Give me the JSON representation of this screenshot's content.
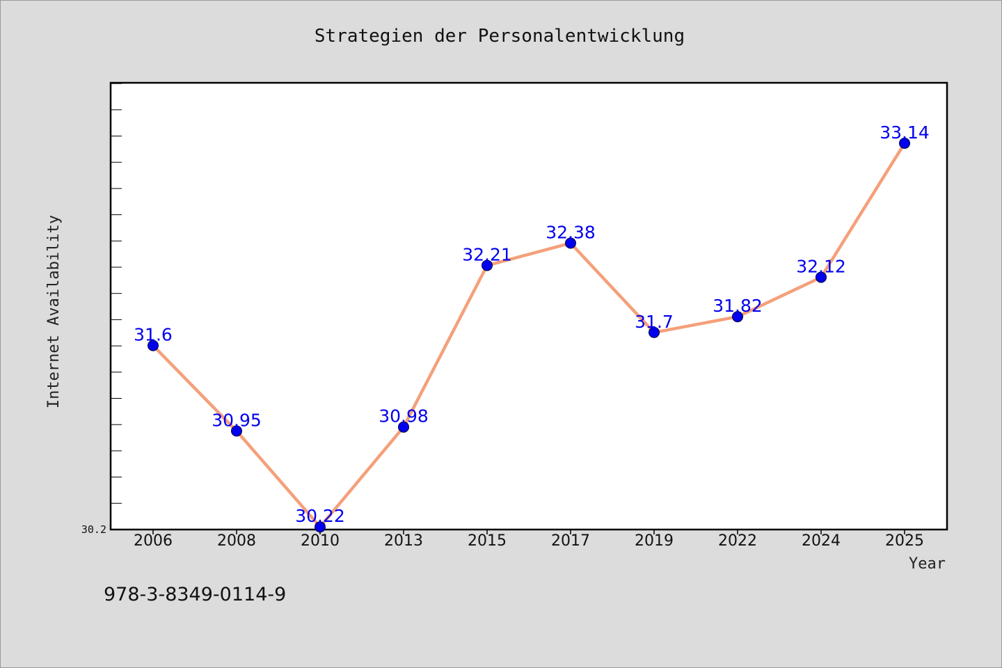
{
  "chart_data": {
    "type": "line",
    "title": "Strategien der Personalentwicklung",
    "xlabel": "Year",
    "ylabel": "Internet Availability",
    "categories": [
      "2006",
      "2008",
      "2010",
      "2013",
      "2015",
      "2017",
      "2019",
      "2022",
      "2024",
      "2025"
    ],
    "series": [
      {
        "values": [
          31.6,
          30.95,
          30.22,
          30.98,
          32.21,
          32.38,
          31.7,
          31.82,
          32.12,
          33.14
        ],
        "data_labels": [
          "31.6",
          "30.95",
          "30.22",
          "30.98",
          "32.21",
          "32.38",
          "31.7",
          "31.82",
          "32.12",
          "33.14"
        ]
      }
    ],
    "ylim": [
      30.2,
      33.6
    ],
    "ytick_labels": [
      "30.2"
    ],
    "grid": false,
    "colors": {
      "line": "#f4a07a",
      "marker": "#0000ee",
      "data_label": "#0000ee",
      "plot_background": "#ffffff",
      "page_background": "#dcdcdc"
    }
  },
  "footer": {
    "isbn": "978-3-8349-0114-9"
  }
}
